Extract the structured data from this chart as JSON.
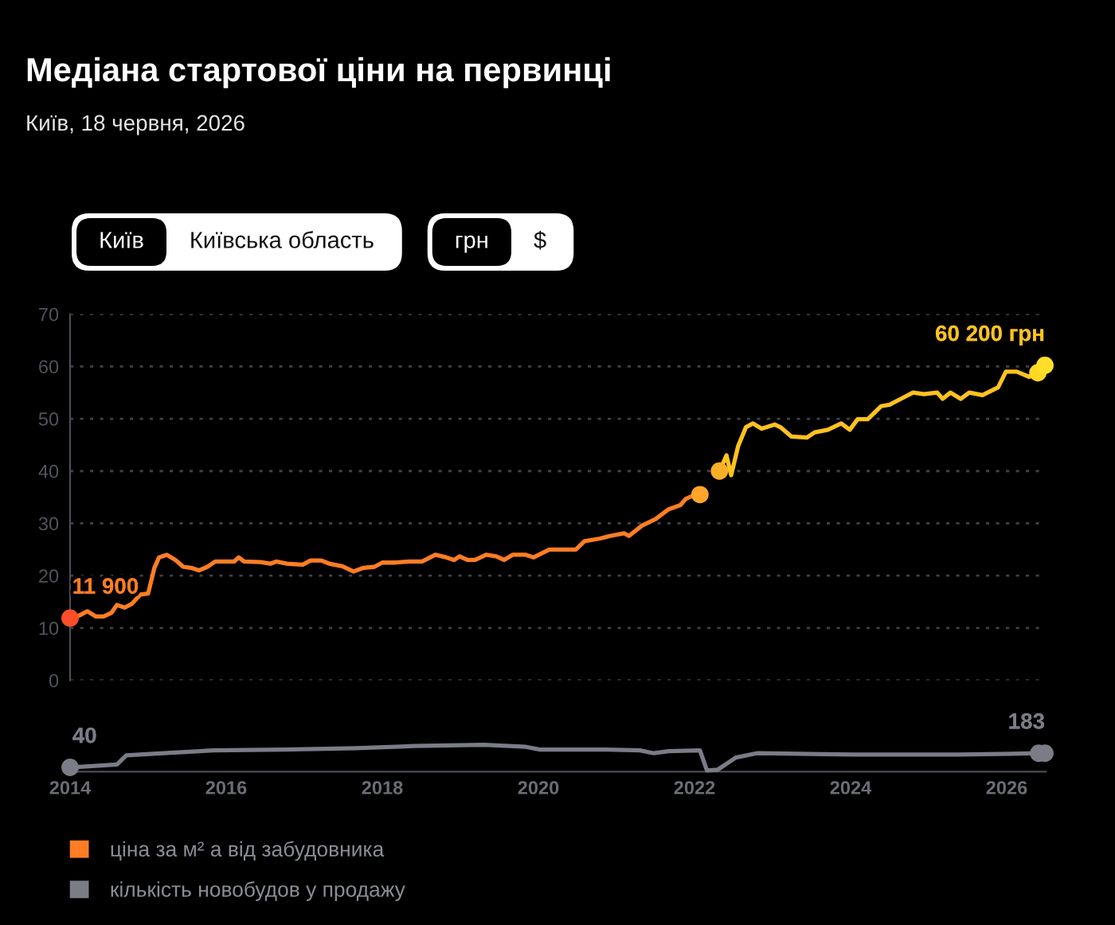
{
  "chart_data": [
    {
      "type": "line",
      "title": "Медіана стартової ціни на первинці",
      "subtitle": "Київ, 18 червня, 2026",
      "annotations": [
        "Київ",
        "Київська область",
        "грн",
        "$",
        {
          "text": "11 900",
          "x": 2014.0,
          "y": 11.9
        },
        {
          "text": "60 200 грн",
          "x": 2026.49,
          "y": 60.2
        }
      ],
      "xlim": [
        2014,
        2026.5
      ],
      "ylim": [
        0,
        70
      ],
      "yticks": [
        0,
        10,
        20,
        30,
        40,
        50,
        60,
        70
      ],
      "grid": "y",
      "tick_labels": "y",
      "legend": "bottom left",
      "series": [
        {
          "name": "ціна за м² а від забудовника",
          "color": "#ff7d24",
          "x": [
            2014.0,
            2014.12,
            2014.22,
            2014.33,
            2014.43,
            2014.53,
            2014.6,
            2014.7,
            2014.79,
            2014.9,
            2015.0,
            2015.08,
            2015.14,
            2015.24,
            2015.35,
            2015.45,
            2015.55,
            2015.65,
            2015.76,
            2015.86,
            2015.99,
            2016.1,
            2016.16,
            2016.23,
            2016.44,
            2016.57,
            2016.64,
            2016.78,
            2016.98,
            2017.08,
            2017.22,
            2017.32,
            2017.49,
            2017.63,
            2017.76,
            2017.9,
            2018.0,
            2018.17,
            2018.34,
            2018.51,
            2018.68,
            2018.82,
            2018.92,
            2018.99,
            2019.09,
            2019.19,
            2019.33,
            2019.46,
            2019.56,
            2019.67,
            2019.84,
            2019.94,
            2020.14,
            2020.48,
            2020.59,
            2020.79,
            2020.92,
            2021.1,
            2021.16,
            2021.33,
            2021.5,
            2021.67,
            2021.82,
            2021.89,
            2021.98,
            2022.07
          ],
          "values": [
            11.9,
            12.4,
            13.2,
            12.2,
            12.2,
            12.9,
            14.4,
            13.9,
            14.6,
            16.4,
            16.6,
            21.5,
            23.5,
            24.0,
            23.0,
            21.7,
            21.5,
            21.0,
            21.7,
            22.7,
            22.7,
            22.7,
            23.5,
            22.7,
            22.6,
            22.3,
            22.7,
            22.3,
            22.1,
            22.9,
            22.9,
            22.3,
            21.8,
            20.8,
            21.5,
            21.7,
            22.5,
            22.5,
            22.7,
            22.7,
            24.0,
            23.5,
            23.0,
            23.7,
            23.0,
            23.0,
            24.0,
            23.7,
            23.0,
            24.0,
            24.0,
            23.5,
            25.0,
            25.0,
            26.6,
            27.1,
            27.6,
            28.1,
            27.6,
            29.6,
            30.8,
            32.7,
            33.5,
            34.7,
            35.3,
            35.5
          ]
        },
        {
          "color": "#ffc21f",
          "x": [
            2022.32,
            2022.41,
            2022.47,
            2022.56,
            2022.66,
            2022.75,
            2022.86,
            2023.03,
            2023.1,
            2023.24,
            2023.44,
            2023.54,
            2023.71,
            2023.88,
            2023.99,
            2024.09,
            2024.22,
            2024.39,
            2024.5,
            2024.67,
            2024.8,
            2024.94,
            2025.11,
            2025.18,
            2025.28,
            2025.41,
            2025.52,
            2025.69,
            2025.89,
            2025.99,
            2026.13,
            2026.29,
            2026.4,
            2026.49
          ],
          "values": [
            40.0,
            43.0,
            39.2,
            44.8,
            48.4,
            49.1,
            48.1,
            48.9,
            48.4,
            46.6,
            46.4,
            47.4,
            47.9,
            49.1,
            47.9,
            49.9,
            49.9,
            52.4,
            52.7,
            54.0,
            55.0,
            54.7,
            55.0,
            53.8,
            55.0,
            53.8,
            55.0,
            54.5,
            56.0,
            59.0,
            59.0,
            58.0,
            58.8,
            60.2
          ]
        },
        {
          "type": "scatter",
          "x": [
            2014.0,
            2022.07,
            2022.32,
            2026.4,
            2026.49
          ],
          "values": [
            11.9,
            35.5,
            40.0,
            58.8,
            60.2
          ],
          "colors": [
            "#ff4e2a",
            "#ffa62a",
            "#ffae28",
            "#ffd824",
            "#ffdf2a"
          ]
        }
      ]
    },
    {
      "type": "line",
      "xlim": [
        2014,
        2026.5
      ],
      "xticks": [
        2014,
        2016,
        2018,
        2020,
        2022,
        2024,
        2026
      ],
      "tick_labels": "x",
      "legend": "bottom left",
      "series": [
        {
          "name": "кількість новобудов у продажу",
          "color": "#7a7d86",
          "x": [
            2014.0,
            2014.6,
            2014.72,
            2015.2,
            2015.84,
            2016.75,
            2017.66,
            2018.4,
            2019.3,
            2019.84,
            2020.02,
            2020.85,
            2021.3,
            2021.48,
            2021.67,
            2022.07,
            2022.16,
            2022.3,
            2022.53,
            2022.8,
            2024.03,
            2025.4,
            2026.41,
            2026.49
          ],
          "values": [
            40,
            69,
            162,
            183,
            212,
            220,
            233,
            255,
            268,
            247,
            220,
            220,
            212,
            183,
            204,
            212,
            10,
            18,
            140,
            183,
            169,
            169,
            183,
            183
          ],
          "value_labels": [
            "40",
            null,
            null,
            null,
            null,
            null,
            null,
            null,
            null,
            null,
            null,
            null,
            null,
            null,
            null,
            null,
            null,
            null,
            null,
            null,
            null,
            null,
            null,
            "183"
          ]
        },
        {
          "type": "scatter",
          "color": "#7a7d86",
          "x": [
            2014.0,
            2026.41,
            2026.49
          ],
          "values": [
            40,
            183,
            183
          ]
        }
      ]
    }
  ]
}
